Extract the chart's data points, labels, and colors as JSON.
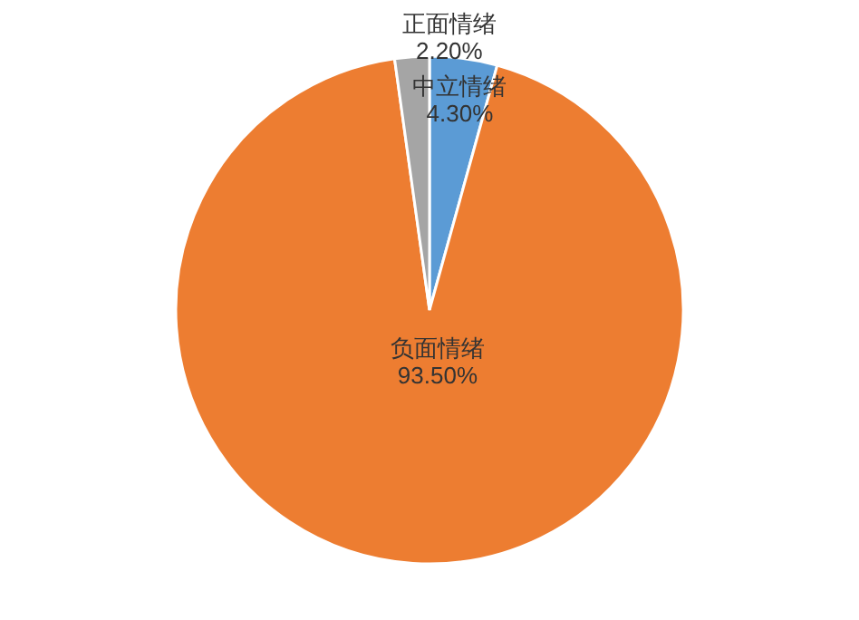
{
  "chart_data": {
    "type": "pie",
    "categories": [
      "中立情绪",
      "负面情绪",
      "正面情绪"
    ],
    "values": [
      4.3,
      93.5,
      2.2
    ],
    "colors": [
      "#5b9bd5",
      "#ed7d31",
      "#a5a5a5"
    ],
    "value_labels": [
      "4.30%",
      "93.50%",
      "2.20%"
    ]
  }
}
